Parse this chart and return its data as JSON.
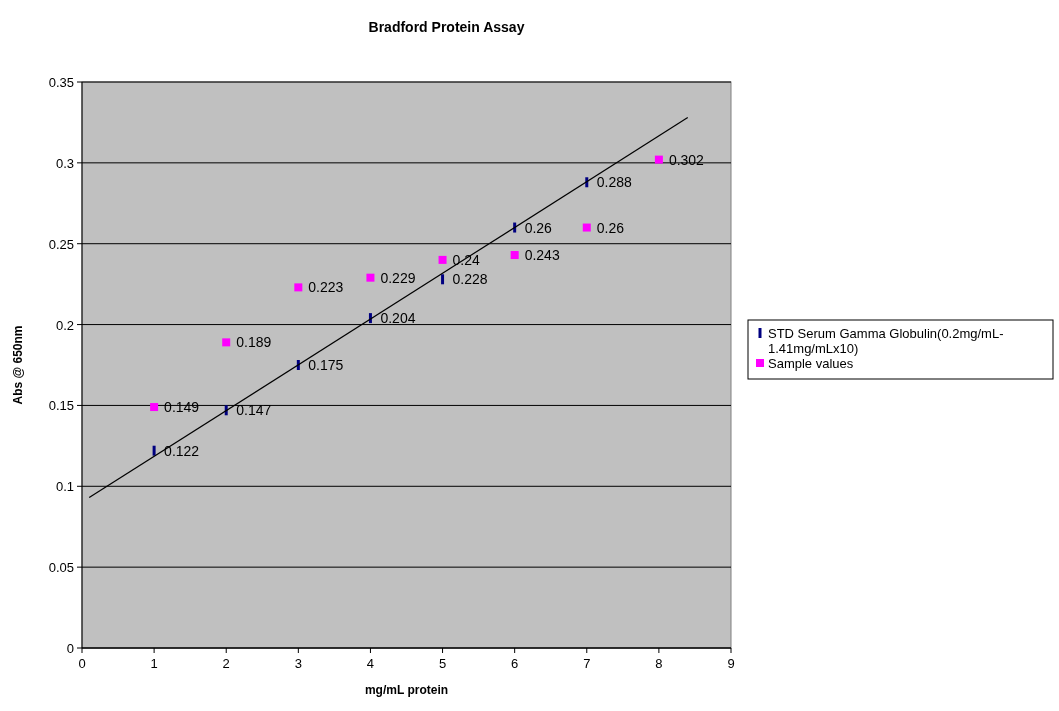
{
  "chart_data": {
    "type": "scatter",
    "title": "Bradford Protein Assay",
    "xlabel": "mg/mL protein",
    "ylabel": "Abs @ 650nm",
    "xlim": [
      0,
      9
    ],
    "xticks": [
      0,
      1,
      2,
      3,
      4,
      5,
      6,
      7,
      8,
      9
    ],
    "ylim": [
      0,
      0.35
    ],
    "yticks": [
      0,
      0.05,
      0.1,
      0.15,
      0.2,
      0.25,
      0.3,
      0.35
    ],
    "grid": "y",
    "legend": "right",
    "series": [
      {
        "name": "STD Serum Gamma Globulin(0.2mg/mL-1.41mg/mLx10)",
        "color": "#000080",
        "x": [
          1,
          2,
          3,
          4,
          5,
          6,
          7
        ],
        "values": [
          0.122,
          0.147,
          0.175,
          0.204,
          0.228,
          0.26,
          0.288
        ],
        "value_labels": [
          "0.122",
          "0.147",
          "0.175",
          "0.204",
          "0.228",
          "0.26",
          "0.288"
        ]
      },
      {
        "name": "Sample values",
        "color": "#ff00ff",
        "marker": "square",
        "x": [
          1,
          2,
          3,
          4,
          5,
          6,
          7,
          8
        ],
        "values": [
          0.149,
          0.189,
          0.223,
          0.229,
          0.24,
          0.243,
          0.26,
          0.302
        ],
        "value_labels": [
          "0.149",
          "0.189",
          "0.223",
          "0.229",
          "0.24",
          "0.243",
          "0.26",
          "0.302"
        ]
      },
      {
        "type": "line",
        "color": "#000000",
        "x": [
          0.1,
          8.4
        ],
        "values": [
          0.093,
          0.328
        ]
      }
    ]
  }
}
